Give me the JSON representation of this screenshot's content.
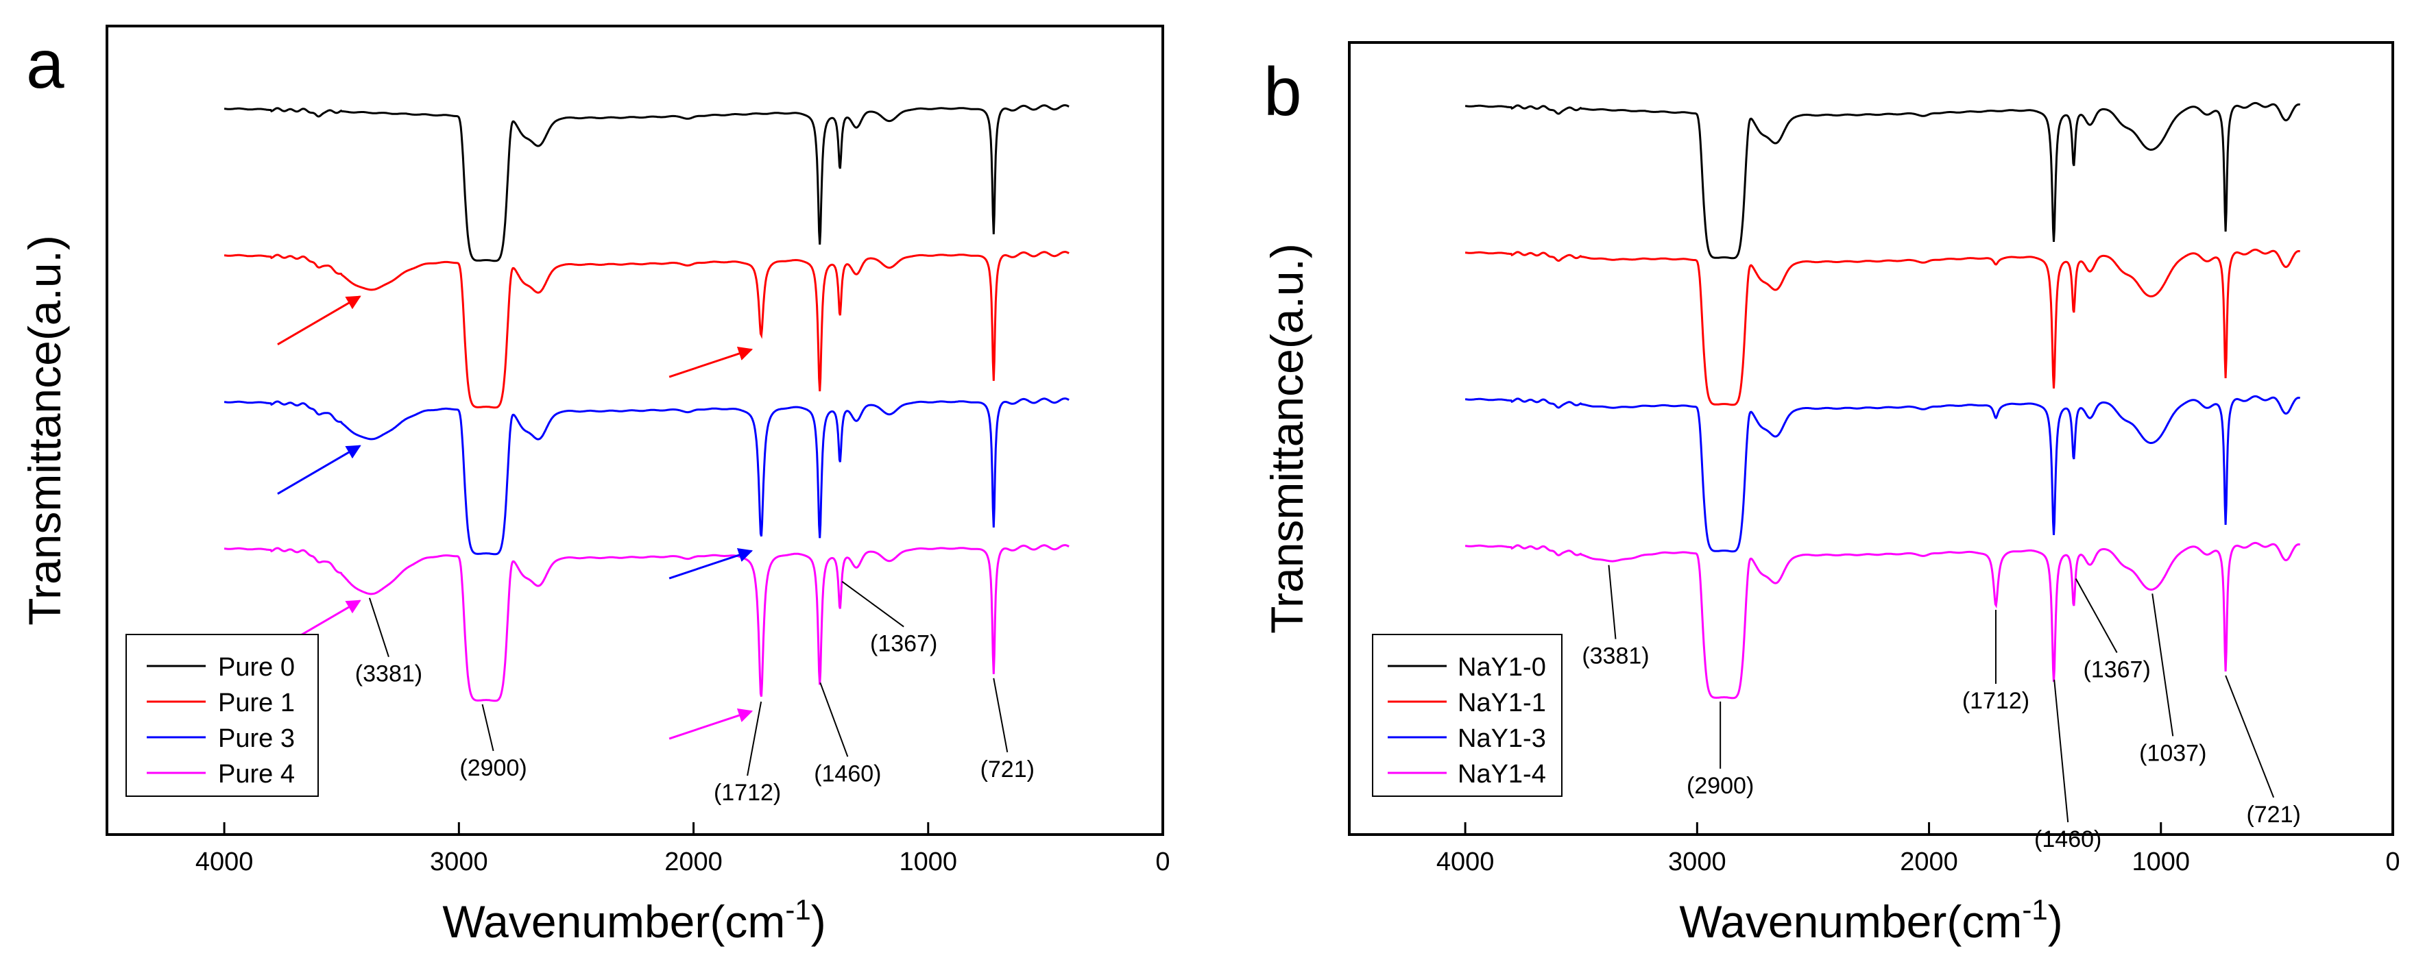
{
  "chart_data": [
    {
      "panel_label": "a",
      "type": "line",
      "xlabel": "Wavenumber(cm",
      "xlabel_sup": "-1",
      "xlabel_close": ")",
      "ylabel": "Transmittance(a.u.)",
      "xlim": [
        4500,
        0
      ],
      "x_ticks": [
        "4000",
        "3000",
        "2000",
        "1000",
        "0"
      ],
      "y_ticks_shown": false,
      "legend_position": "bottom-left",
      "series": [
        {
          "name": "Pure 0",
          "color": "#000000",
          "offset": 3,
          "c1712": 0.0,
          "c3381": 0.0
        },
        {
          "name": "Pure 1",
          "color": "#ff0000",
          "offset": 2,
          "c1712": 0.55,
          "c3381": 0.22
        },
        {
          "name": "Pure 3",
          "color": "#0000ff",
          "offset": 1,
          "c1712": 0.95,
          "c3381": 0.24
        },
        {
          "name": "Pure 4",
          "color": "#ff00ff",
          "offset": 0,
          "c1712": 1.05,
          "c3381": 0.3
        }
      ],
      "annotations": [
        {
          "text": "(3381)",
          "x": 3381
        },
        {
          "text": "(2900)",
          "x": 2900
        },
        {
          "text": "(1712)",
          "x": 1712
        },
        {
          "text": "(1460)",
          "x": 1460
        },
        {
          "text": "(1367)",
          "x": 1367
        },
        {
          "text": "(721)",
          "x": 721
        }
      ],
      "arrows": [
        {
          "color": "#ff0000",
          "target_x": 3381
        },
        {
          "color": "#ff0000",
          "target_x": 1712
        },
        {
          "color": "#0000ff",
          "target_x": 3381
        },
        {
          "color": "#0000ff",
          "target_x": 1712
        },
        {
          "color": "#ff00ff",
          "target_x": 3381
        },
        {
          "color": "#ff00ff",
          "target_x": 1712
        }
      ]
    },
    {
      "panel_label": "b",
      "type": "line",
      "xlabel": "Wavenumber(cm",
      "xlabel_sup": "-1",
      "xlabel_close": ")",
      "ylabel": "Transmittance(a.u.)",
      "xlim": [
        4500,
        0
      ],
      "x_ticks": [
        "4000",
        "3000",
        "2000",
        "1000",
        "0"
      ],
      "y_ticks_shown": false,
      "legend_position": "bottom-left",
      "series": [
        {
          "name": "NaY1-0",
          "color": "#000000",
          "offset": 3,
          "c1712": 0.0,
          "c3381": 0.0
        },
        {
          "name": "NaY1-1",
          "color": "#ff0000",
          "offset": 2,
          "c1712": 0.05,
          "c3381": 0.02
        },
        {
          "name": "NaY1-3",
          "color": "#0000ff",
          "offset": 1,
          "c1712": 0.1,
          "c3381": 0.03
        },
        {
          "name": "NaY1-4",
          "color": "#ff00ff",
          "offset": 0,
          "c1712": 0.4,
          "c3381": 0.08
        }
      ],
      "annotations": [
        {
          "text": "(3381)",
          "x": 3381
        },
        {
          "text": "(2900)",
          "x": 2900
        },
        {
          "text": "(1712)",
          "x": 1712
        },
        {
          "text": "(1460)",
          "x": 1460
        },
        {
          "text": "(1367)",
          "x": 1367
        },
        {
          "text": "(1037)",
          "x": 1037
        },
        {
          "text": "(721)",
          "x": 721
        }
      ],
      "arrows": []
    }
  ]
}
